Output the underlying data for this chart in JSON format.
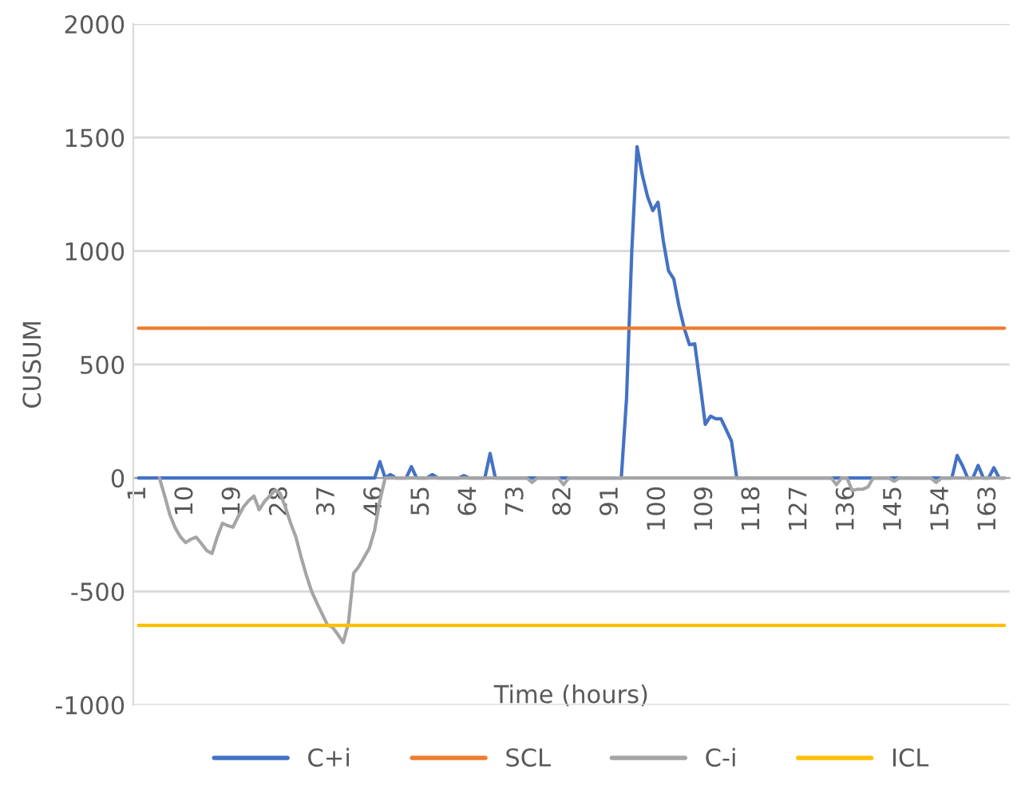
{
  "chart_data": {
    "type": "line",
    "xlabel": "Time (hours)",
    "ylabel": "CUSUM",
    "categories": [
      "1",
      null,
      null,
      null,
      null,
      null,
      null,
      null,
      null,
      "10",
      null,
      null,
      null,
      null,
      null,
      null,
      null,
      null,
      "19",
      null,
      null,
      null,
      null,
      null,
      null,
      null,
      null,
      "28",
      null,
      null,
      null,
      null,
      null,
      null,
      null,
      null,
      "37",
      null,
      null,
      null,
      null,
      null,
      null,
      null,
      null,
      "46",
      null,
      null,
      null,
      null,
      null,
      null,
      null,
      null,
      "55",
      null,
      null,
      null,
      null,
      null,
      null,
      null,
      null,
      "64",
      null,
      null,
      null,
      null,
      null,
      null,
      null,
      null,
      "73",
      null,
      null,
      null,
      null,
      null,
      null,
      null,
      null,
      "82",
      null,
      null,
      null,
      null,
      null,
      null,
      null,
      null,
      "91",
      null,
      null,
      null,
      null,
      null,
      null,
      null,
      null,
      "100",
      null,
      null,
      null,
      null,
      null,
      null,
      null,
      null,
      "109",
      null,
      null,
      null,
      null,
      null,
      null,
      null,
      null,
      "118",
      null,
      null,
      null,
      null,
      null,
      null,
      null,
      null,
      "127",
      null,
      null,
      null,
      null,
      null,
      null,
      null,
      null,
      "136",
      null,
      null,
      null,
      null,
      null,
      null,
      null,
      null,
      "145",
      null,
      null,
      null,
      null,
      null,
      null,
      null,
      null,
      "154",
      null,
      null,
      null,
      null,
      null,
      null,
      null,
      null,
      "163",
      null,
      null,
      null
    ],
    "series": [
      {
        "name": "C+i",
        "color": "#4472c4",
        "values": [
          0,
          0,
          0,
          0,
          0,
          0,
          0,
          0,
          0,
          0,
          0,
          0,
          0,
          0,
          0,
          0,
          0,
          0,
          0,
          0,
          0,
          0,
          0,
          0,
          0,
          0,
          0,
          0,
          0,
          0,
          0,
          0,
          0,
          0,
          0,
          0,
          0,
          0,
          0,
          0,
          0,
          0,
          0,
          0,
          0,
          0,
          72,
          0,
          15,
          0,
          0,
          0,
          50,
          0,
          0,
          0,
          15,
          0,
          0,
          0,
          0,
          0,
          10,
          0,
          0,
          0,
          0,
          108,
          0,
          0,
          0,
          0,
          0,
          0,
          0,
          0,
          0,
          0,
          0,
          0,
          0,
          0,
          0,
          0,
          0,
          0,
          0,
          0,
          0,
          0,
          0,
          0,
          0,
          350,
          1000,
          1460,
          1335,
          1240,
          1178,
          1215,
          1046,
          913,
          877,
          756,
          659,
          587,
          591,
          417,
          236,
          272,
          261,
          261,
          212,
          162,
          0,
          0,
          0,
          0,
          0,
          0,
          0,
          0,
          0,
          0,
          0,
          0,
          0,
          0,
          0,
          0,
          0,
          0,
          0,
          0,
          0,
          0,
          0,
          0,
          0,
          0,
          0,
          0,
          0,
          0,
          0,
          0,
          0,
          0,
          0,
          0,
          0,
          0,
          0,
          0,
          0,
          0,
          99,
          55,
          0,
          0,
          55,
          0,
          0,
          45,
          0,
          0
        ]
      },
      {
        "name": "SCL",
        "color": "#ed7d31",
        "values": [
          660,
          660,
          660,
          660,
          660,
          660,
          660,
          660,
          660,
          660,
          660,
          660,
          660,
          660,
          660,
          660,
          660,
          660,
          660,
          660,
          660,
          660,
          660,
          660,
          660,
          660,
          660,
          660,
          660,
          660,
          660,
          660,
          660,
          660,
          660,
          660,
          660,
          660,
          660,
          660,
          660,
          660,
          660,
          660,
          660,
          660,
          660,
          660,
          660,
          660,
          660,
          660,
          660,
          660,
          660,
          660,
          660,
          660,
          660,
          660,
          660,
          660,
          660,
          660,
          660,
          660,
          660,
          660,
          660,
          660,
          660,
          660,
          660,
          660,
          660,
          660,
          660,
          660,
          660,
          660,
          660,
          660,
          660,
          660,
          660,
          660,
          660,
          660,
          660,
          660,
          660,
          660,
          660,
          660,
          660,
          660,
          660,
          660,
          660,
          660,
          660,
          660,
          660,
          660,
          660,
          660,
          660,
          660,
          660,
          660,
          660,
          660,
          660,
          660,
          660,
          660,
          660,
          660,
          660,
          660,
          660,
          660,
          660,
          660,
          660,
          660,
          660,
          660,
          660,
          660,
          660,
          660,
          660,
          660,
          660,
          660,
          660,
          660,
          660,
          660,
          660,
          660,
          660,
          660,
          660,
          660,
          660,
          660,
          660,
          660,
          660,
          660,
          660,
          660,
          660,
          660,
          660,
          660,
          660,
          660,
          660,
          660,
          660,
          660,
          660,
          660
        ]
      },
      {
        "name": "C-i",
        "color": "#a5a5a5",
        "values": [
          null,
          null,
          null,
          null,
          0,
          -80,
          -164,
          -220,
          -260,
          -285,
          -270,
          -261,
          -290,
          -320,
          -333,
          -260,
          -200,
          -210,
          -217,
          -170,
          -128,
          -100,
          -80,
          -140,
          -104,
          -80,
          -55,
          -68,
          -130,
          -200,
          -261,
          -350,
          -430,
          -500,
          -551,
          -600,
          -647,
          -659,
          -690,
          -725,
          -640,
          -420,
          -390,
          -350,
          -309,
          -230,
          -100,
          0,
          0,
          0,
          0,
          0,
          0,
          0,
          0,
          0,
          0,
          0,
          0,
          0,
          0,
          0,
          0,
          0,
          0,
          0,
          0,
          0,
          0,
          0,
          0,
          0,
          0,
          0,
          0,
          -20,
          0,
          0,
          0,
          0,
          0,
          -30,
          0,
          0,
          0,
          0,
          0,
          0,
          0,
          0,
          0,
          0,
          0,
          0,
          0,
          0,
          0,
          0,
          0,
          0,
          0,
          0,
          0,
          0,
          0,
          0,
          0,
          0,
          0,
          0,
          0,
          0,
          0,
          0,
          0,
          0,
          0,
          0,
          0,
          0,
          0,
          0,
          0,
          0,
          0,
          0,
          0,
          0,
          0,
          0,
          0,
          0,
          0,
          -30,
          0,
          0,
          -55,
          -50,
          -50,
          -40,
          0,
          0,
          0,
          0,
          -15,
          0,
          0,
          0,
          0,
          0,
          0,
          0,
          -20,
          0,
          0,
          0,
          0,
          0,
          0,
          0,
          0,
          0,
          0,
          0,
          0,
          0
        ]
      },
      {
        "name": "ICL",
        "color": "#ffc000",
        "values": [
          -650,
          -650,
          -650,
          -650,
          -650,
          -650,
          -650,
          -650,
          -650,
          -650,
          -650,
          -650,
          -650,
          -650,
          -650,
          -650,
          -650,
          -650,
          -650,
          -650,
          -650,
          -650,
          -650,
          -650,
          -650,
          -650,
          -650,
          -650,
          -650,
          -650,
          -650,
          -650,
          -650,
          -650,
          -650,
          -650,
          -650,
          -650,
          -650,
          -650,
          -650,
          -650,
          -650,
          -650,
          -650,
          -650,
          -650,
          -650,
          -650,
          -650,
          -650,
          -650,
          -650,
          -650,
          -650,
          -650,
          -650,
          -650,
          -650,
          -650,
          -650,
          -650,
          -650,
          -650,
          -650,
          -650,
          -650,
          -650,
          -650,
          -650,
          -650,
          -650,
          -650,
          -650,
          -650,
          -650,
          -650,
          -650,
          -650,
          -650,
          -650,
          -650,
          -650,
          -650,
          -650,
          -650,
          -650,
          -650,
          -650,
          -650,
          -650,
          -650,
          -650,
          -650,
          -650,
          -650,
          -650,
          -650,
          -650,
          -650,
          -650,
          -650,
          -650,
          -650,
          -650,
          -650,
          -650,
          -650,
          -650,
          -650,
          -650,
          -650,
          -650,
          -650,
          -650,
          -650,
          -650,
          -650,
          -650,
          -650,
          -650,
          -650,
          -650,
          -650,
          -650,
          -650,
          -650,
          -650,
          -650,
          -650,
          -650,
          -650,
          -650,
          -650,
          -650,
          -650,
          -650,
          -650,
          -650,
          -650,
          -650,
          -650,
          -650,
          -650,
          -650,
          -650,
          -650,
          -650,
          -650,
          -650,
          -650,
          -650,
          -650,
          -650,
          -650,
          -650,
          -650,
          -650,
          -650,
          -650,
          -650,
          -650,
          -650,
          -650,
          -650,
          -650
        ]
      }
    ],
    "ylim": [
      -1000,
      2000
    ],
    "yticks": [
      -1000,
      -500,
      0,
      500,
      1000,
      1500,
      2000
    ],
    "grid": "y",
    "legend": "bottom",
    "marker": "none",
    "line_style": "solid"
  }
}
